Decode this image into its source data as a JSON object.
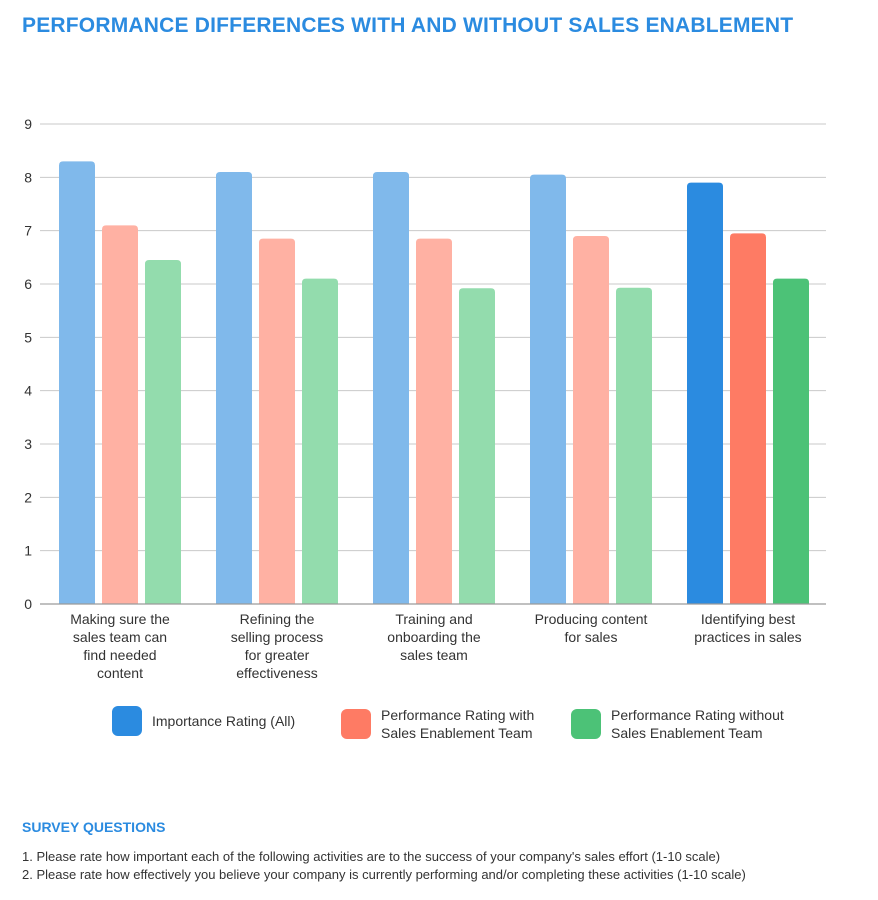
{
  "page": {
    "title": "PERFORMANCE DIFFERENCES WITH AND WITHOUT SALES ENABLEMENT"
  },
  "chart_data": {
    "type": "bar",
    "categories": [
      "Making sure the\nsales team can\nfind needed\ncontent",
      "Refining the\nselling process\nfor greater\neffectiveness",
      "Training and\nonboarding the\nsales team",
      "Producing content\nfor sales",
      "Identifying best\npractices in sales"
    ],
    "series": [
      {
        "name": "Importance Rating (All)",
        "values": [
          8.3,
          8.1,
          8.1,
          8.05,
          7.9
        ],
        "color": "#2b8be0",
        "light_color": "#80b9eb"
      },
      {
        "name": "Performance Rating with\nSales Enablement Team",
        "values": [
          7.1,
          6.85,
          6.85,
          6.9,
          6.95
        ],
        "color": "#fe7b64",
        "light_color": "#ffb1a3"
      },
      {
        "name": "Performance Rating without\nSales Enablement Team",
        "values": [
          6.45,
          6.1,
          5.92,
          5.93,
          6.1
        ],
        "color": "#4cc277",
        "light_color": "#93dcad"
      }
    ],
    "highlighted_category_index": 4,
    "ylim": [
      0,
      9
    ],
    "yticks": [
      "0",
      "1",
      "2",
      "3",
      "4",
      "5",
      "6",
      "7",
      "8",
      "9"
    ],
    "xlabel": "",
    "ylabel": "",
    "grid": true,
    "legend_position": "bottom"
  },
  "survey": {
    "heading": "SURVEY QUESTIONS",
    "questions": [
      "1.  Please rate how important each of the following activities are to the success of your company's sales effort (1-10 scale)",
      "2. Please rate how effectively you believe your company is currently performing and/or completing these activities (1-10 scale)"
    ]
  }
}
